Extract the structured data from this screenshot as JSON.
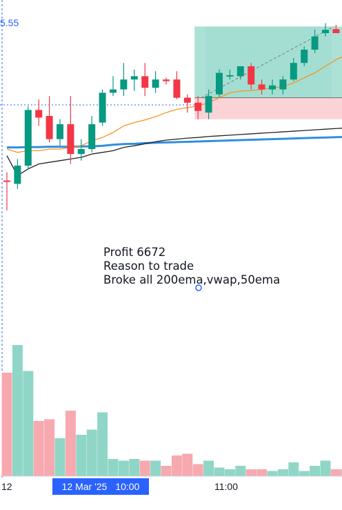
{
  "chart_data": {
    "type": "candlestick",
    "y_axis_visible_value": "5.55",
    "x_labels": [
      "12",
      "11:00"
    ],
    "crosshair_date": "12 Mar '25",
    "crosshair_time": "10:00",
    "candles": [
      {
        "o": 0.455,
        "h": 0.48,
        "l": 0.365,
        "c": 0.452
      },
      {
        "o": 0.445,
        "h": 0.52,
        "l": 0.43,
        "c": 0.5
      },
      {
        "o": 0.5,
        "h": 0.68,
        "l": 0.49,
        "c": 0.668
      },
      {
        "o": 0.668,
        "h": 0.7,
        "l": 0.62,
        "c": 0.645
      },
      {
        "o": 0.65,
        "h": 0.71,
        "l": 0.57,
        "c": 0.58
      },
      {
        "o": 0.58,
        "h": 0.64,
        "l": 0.56,
        "c": 0.625
      },
      {
        "o": 0.625,
        "h": 0.71,
        "l": 0.505,
        "c": 0.535
      },
      {
        "o": 0.535,
        "h": 0.58,
        "l": 0.515,
        "c": 0.55
      },
      {
        "o": 0.55,
        "h": 0.65,
        "l": 0.54,
        "c": 0.625
      },
      {
        "o": 0.63,
        "h": 0.73,
        "l": 0.62,
        "c": 0.72
      },
      {
        "o": 0.72,
        "h": 0.77,
        "l": 0.71,
        "c": 0.73
      },
      {
        "o": 0.73,
        "h": 0.81,
        "l": 0.71,
        "c": 0.76
      },
      {
        "o": 0.76,
        "h": 0.79,
        "l": 0.725,
        "c": 0.77
      },
      {
        "o": 0.77,
        "h": 0.81,
        "l": 0.71,
        "c": 0.735
      },
      {
        "o": 0.735,
        "h": 0.785,
        "l": 0.72,
        "c": 0.76
      },
      {
        "o": 0.76,
        "h": 0.765,
        "l": 0.745,
        "c": 0.755
      },
      {
        "o": 0.76,
        "h": 0.785,
        "l": 0.7,
        "c": 0.705
      },
      {
        "o": 0.705,
        "h": 0.715,
        "l": 0.66,
        "c": 0.69
      },
      {
        "o": 0.69,
        "h": 0.71,
        "l": 0.64,
        "c": 0.665
      },
      {
        "o": 0.66,
        "h": 0.73,
        "l": 0.64,
        "c": 0.71
      },
      {
        "o": 0.715,
        "h": 0.79,
        "l": 0.705,
        "c": 0.78
      },
      {
        "o": 0.77,
        "h": 0.79,
        "l": 0.76,
        "c": 0.773
      },
      {
        "o": 0.77,
        "h": 0.8,
        "l": 0.76,
        "c": 0.8
      },
      {
        "o": 0.8,
        "h": 0.81,
        "l": 0.73,
        "c": 0.745
      },
      {
        "o": 0.745,
        "h": 0.76,
        "l": 0.715,
        "c": 0.73
      },
      {
        "o": 0.73,
        "h": 0.76,
        "l": 0.715,
        "c": 0.742
      },
      {
        "o": 0.73,
        "h": 0.77,
        "l": 0.715,
        "c": 0.76
      },
      {
        "o": 0.76,
        "h": 0.825,
        "l": 0.755,
        "c": 0.81
      },
      {
        "o": 0.81,
        "h": 0.86,
        "l": 0.8,
        "c": 0.85
      },
      {
        "o": 0.85,
        "h": 0.91,
        "l": 0.84,
        "c": 0.89
      },
      {
        "o": 0.9,
        "h": 0.93,
        "l": 0.89,
        "c": 0.91
      },
      {
        "o": 0.912,
        "h": 0.925,
        "l": 0.9,
        "c": 0.9
      },
      {
        "o": 0.9,
        "h": 0.925,
        "l": 0.895,
        "c": 0.92
      },
      {
        "o": 0.92,
        "h": 0.93,
        "l": 0.9,
        "c": 0.915
      }
    ],
    "volume": [
      0.6,
      0.76,
      0.61,
      0.32,
      0.33,
      0.22,
      0.38,
      0.24,
      0.27,
      0.37,
      0.1,
      0.09,
      0.1,
      0.09,
      0.09,
      0.06,
      0.12,
      0.13,
      0.07,
      0.09,
      0.05,
      0.04,
      0.06,
      0.04,
      0.04,
      0.03,
      0.04,
      0.08,
      0.03,
      0.06,
      0.09,
      0.04,
      0.04,
      0.04
    ],
    "overlays": {
      "ema_orange": [
        0.55,
        0.54,
        0.545,
        0.545,
        0.55,
        0.55,
        0.555,
        0.56,
        0.575,
        0.585,
        0.6,
        0.62,
        0.63,
        0.638,
        0.648,
        0.66,
        0.67,
        0.675,
        0.68,
        0.69,
        0.705,
        0.72,
        0.725,
        0.727,
        0.73,
        0.735,
        0.738,
        0.75,
        0.765,
        0.78,
        0.8,
        0.82,
        0.835,
        0.85
      ],
      "vwap_black": [
        0.53,
        0.47,
        0.49,
        0.505,
        0.51,
        0.515,
        0.52,
        0.525,
        0.535,
        0.54,
        0.545,
        0.555,
        0.56,
        0.566,
        0.572,
        0.577,
        0.58,
        0.583,
        0.585,
        0.588,
        0.59,
        0.592,
        0.594,
        0.596,
        0.598,
        0.6,
        0.602,
        0.604,
        0.606,
        0.608,
        0.61,
        0.612,
        0.614,
        0.615
      ],
      "ema200_blue": [
        0.555,
        0.555,
        0.556,
        0.556,
        0.557,
        0.557,
        0.557,
        0.558,
        0.558,
        0.56,
        0.563,
        0.565,
        0.566,
        0.568,
        0.569,
        0.57,
        0.571,
        0.572,
        0.573,
        0.574,
        0.575,
        0.576,
        0.577,
        0.578,
        0.579,
        0.58,
        0.581,
        0.582,
        0.583,
        0.584,
        0.585,
        0.586,
        0.587,
        0.589
      ]
    },
    "trade": {
      "entry_candle_index": 18,
      "entry": 0.705,
      "stop": 0.64,
      "target": 0.92,
      "exit_candle_index": 31
    }
  },
  "annotation": {
    "line1": "Profit 6672",
    "line2": "Reason to trade",
    "line3": "Broke all 200ema,vwap,50ema"
  },
  "colors": {
    "up": "#089981",
    "down": "#f23645",
    "vol_up": "#8fd6c6",
    "vol_down": "#f7a9b0",
    "profit_zone": "#9edccf",
    "loss_zone": "#fbd3d6",
    "ema_orange": "#f7931e",
    "vwap_black": "#222222",
    "ema200_blue": "#2f8fe0",
    "accent": "#2962ff"
  }
}
